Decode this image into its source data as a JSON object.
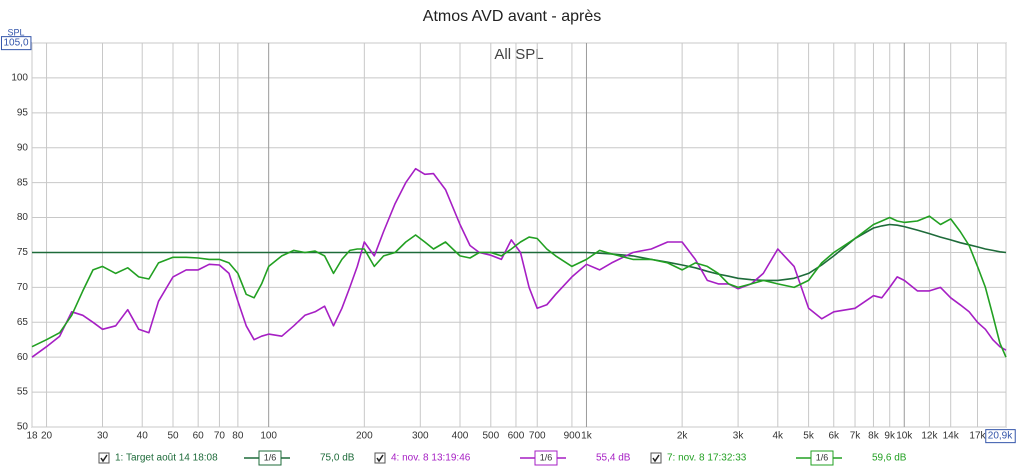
{
  "chart_data": {
    "type": "line",
    "title": "Atmos AVD avant - après",
    "subtitle": "All SPL",
    "y_label": "SPL",
    "log_x": true,
    "grid": true,
    "xlim": [
      18,
      20900
    ],
    "ylim": [
      50,
      105
    ],
    "yticks": [
      50,
      55,
      60,
      65,
      70,
      75,
      80,
      85,
      90,
      95,
      100,
      {
        "value": 105,
        "label": "105,0"
      }
    ],
    "xticks": [
      18,
      20,
      30,
      40,
      50,
      60,
      70,
      80,
      100,
      200,
      300,
      400,
      500,
      600,
      700,
      900,
      {
        "value": 1000,
        "label": "1k"
      },
      {
        "value": 2000,
        "label": "2k"
      },
      {
        "value": 3000,
        "label": "3k"
      },
      {
        "value": 4000,
        "label": "4k"
      },
      {
        "value": 5000,
        "label": "5k"
      },
      {
        "value": 6000,
        "label": "6k"
      },
      {
        "value": 7000,
        "label": "7k"
      },
      {
        "value": 8000,
        "label": "8k"
      },
      {
        "value": 9000,
        "label": "9k"
      },
      {
        "value": 10000,
        "label": "10k"
      },
      {
        "value": 12000,
        "label": "12k"
      },
      {
        "value": 14000,
        "label": "14k"
      },
      {
        "value": 17000,
        "label": "17k"
      },
      {
        "value": 20900,
        "label": "20,9k"
      }
    ],
    "x": [
      18,
      20,
      22,
      24,
      26,
      28,
      30,
      33,
      36,
      39,
      42,
      45,
      50,
      55,
      60,
      65,
      70,
      75,
      80,
      85,
      90,
      95,
      100,
      110,
      120,
      130,
      140,
      150,
      160,
      170,
      180,
      190,
      200,
      215,
      230,
      250,
      270,
      290,
      310,
      330,
      360,
      400,
      430,
      460,
      500,
      540,
      580,
      620,
      660,
      700,
      750,
      800,
      900,
      1000,
      1100,
      1200,
      1400,
      1600,
      1800,
      2000,
      2200,
      2400,
      2600,
      2800,
      3000,
      3300,
      3600,
      4000,
      4500,
      5000,
      5500,
      6000,
      7000,
      8000,
      8500,
      9000,
      9500,
      10000,
      11000,
      12000,
      13000,
      14000,
      15000,
      16000,
      17000,
      18000,
      19000,
      20000,
      20900
    ],
    "series": [
      {
        "name": "1: Target août 14 18:08",
        "smoothing": "1/6",
        "level": "75,0 dB",
        "color": "#1e6b3a",
        "values": [
          75,
          75,
          75,
          75,
          75,
          75,
          75,
          75,
          75,
          75,
          75,
          75,
          75,
          75,
          75,
          75,
          75,
          75,
          75,
          75,
          75,
          75,
          75,
          75,
          75,
          75,
          75,
          75,
          75,
          75,
          75,
          75,
          75,
          75,
          75,
          75,
          75,
          75,
          75,
          75,
          75,
          75,
          75,
          75,
          75,
          75,
          75,
          75,
          75,
          75,
          75,
          75,
          75,
          75,
          74.9,
          74.8,
          74.5,
          74,
          73.6,
          73.2,
          72.8,
          72.3,
          71.9,
          71.6,
          71.3,
          71.1,
          71,
          71,
          71.3,
          72,
          73.2,
          74.5,
          77,
          78.5,
          78.8,
          79,
          78.9,
          78.7,
          78.2,
          77.7,
          77.2,
          76.8,
          76.4,
          76.1,
          75.8,
          75.5,
          75.3,
          75.1,
          75
        ]
      },
      {
        "name": "4: nov. 8 13:19:46",
        "smoothing": "1/6",
        "level": "55,4 dB",
        "color": "#a61fc4",
        "values": [
          60,
          61.5,
          63,
          66.5,
          66,
          65,
          64,
          64.5,
          66.8,
          64,
          63.5,
          68,
          71.5,
          72.5,
          72.5,
          73.3,
          73.2,
          72,
          68,
          64.5,
          62.5,
          63,
          63.3,
          63,
          64.5,
          66,
          66.5,
          67.3,
          64.5,
          67,
          70,
          73,
          76.5,
          74.5,
          78,
          82,
          85,
          87,
          86.2,
          86.3,
          84,
          79,
          76,
          75,
          74.6,
          74,
          76.8,
          75,
          70,
          67,
          67.5,
          69,
          71.5,
          73.3,
          72.5,
          73.5,
          75,
          75.5,
          76.5,
          76.5,
          74,
          71,
          70.5,
          70.5,
          69.8,
          70.5,
          72,
          75.5,
          73,
          67,
          65.5,
          66.5,
          67,
          68.8,
          68.5,
          70,
          71.5,
          71,
          69.5,
          69.5,
          70,
          68.5,
          67.5,
          66.5,
          65,
          64,
          62.5,
          61.5,
          61
        ]
      },
      {
        "name": "7: nov. 8 17:32:33",
        "smoothing": "1/6",
        "level": "59,6 dB",
        "color": "#22a022",
        "values": [
          61.5,
          62.5,
          63.5,
          66,
          69.5,
          72.5,
          73,
          72,
          72.8,
          71.5,
          71.2,
          73.5,
          74.3,
          74.3,
          74.2,
          74,
          74,
          73.5,
          72,
          69,
          68.5,
          70.5,
          73,
          74.5,
          75.3,
          75,
          75.2,
          74.5,
          72,
          74,
          75.3,
          75.5,
          75.5,
          73,
          74.5,
          75,
          76.5,
          77.5,
          76.5,
          75.5,
          76.5,
          74.5,
          74.2,
          75,
          75,
          74.5,
          75.5,
          76.5,
          77.2,
          77,
          75.5,
          74.5,
          73,
          74,
          75.3,
          74.8,
          74,
          74,
          73.5,
          72.5,
          73.5,
          73,
          72,
          70.5,
          70,
          70.5,
          71,
          70.5,
          70,
          71,
          73.5,
          75,
          77,
          79,
          79.5,
          80,
          79.5,
          79.3,
          79.5,
          80.2,
          79,
          79.8,
          78,
          76,
          73,
          70,
          66,
          62,
          60
        ]
      }
    ]
  }
}
